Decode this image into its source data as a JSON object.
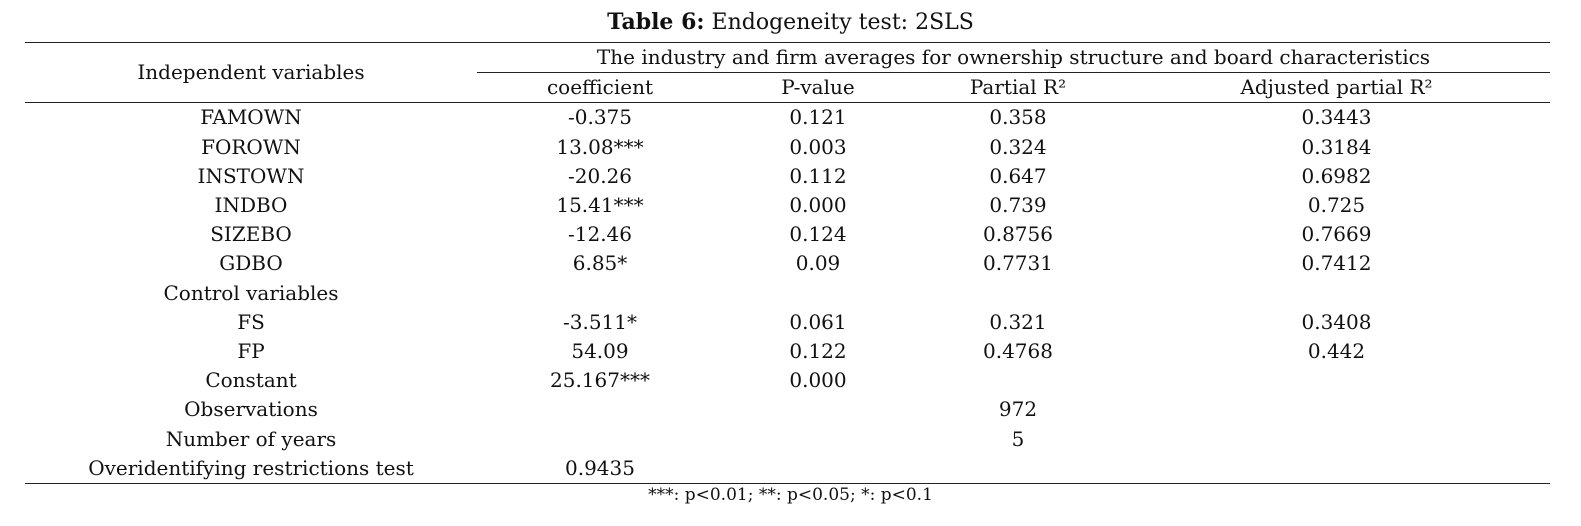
{
  "caption": {
    "label": "Table 6:",
    "title": "Endogeneity test: 2SLS"
  },
  "table": {
    "row_header": "Independent variables",
    "group_header": "The industry and firm averages for ownership structure and board characteristics",
    "columns": [
      "coefficient",
      "P-value",
      "Partial R²",
      "Adjusted partial R²"
    ],
    "rows": [
      {
        "label": "FAMOWN",
        "cells": [
          "-0.375",
          "0.121",
          "0.358",
          "0.3443"
        ]
      },
      {
        "label": "FOROWN",
        "cells": [
          "13.08***",
          "0.003",
          "0.324",
          "0.3184"
        ]
      },
      {
        "label": "INSTOWN",
        "cells": [
          "-20.26",
          "0.112",
          "0.647",
          "0.6982"
        ]
      },
      {
        "label": "INDBO",
        "cells": [
          "15.41***",
          "0.000",
          "0.739",
          "0.725"
        ]
      },
      {
        "label": "SIZEBO",
        "cells": [
          "-12.46",
          "0.124",
          "0.8756",
          "0.7669"
        ]
      },
      {
        "label": "GDBO",
        "cells": [
          "6.85*",
          "0.09",
          "0.7731",
          "0.7412"
        ]
      },
      {
        "label": "Control variables",
        "cells": [
          "",
          "",
          "",
          ""
        ]
      },
      {
        "label": "FS",
        "cells": [
          "-3.511*",
          "0.061",
          "0.321",
          "0.3408"
        ]
      },
      {
        "label": "FP",
        "cells": [
          "54.09",
          "0.122",
          "0.4768",
          "0.442"
        ]
      },
      {
        "label": "Constant",
        "cells": [
          "25.167***",
          "0.000",
          "",
          ""
        ]
      },
      {
        "label": "Observations",
        "cells": [
          "",
          "",
          "972",
          ""
        ]
      },
      {
        "label": "Number of years",
        "cells": [
          "",
          "",
          "5",
          ""
        ]
      },
      {
        "label": "Overidentifying restrictions test",
        "cells": [
          "0.9435",
          "",
          "",
          ""
        ]
      }
    ]
  },
  "note": "***: p<0.01; **: p<0.05; *: p<0.1"
}
